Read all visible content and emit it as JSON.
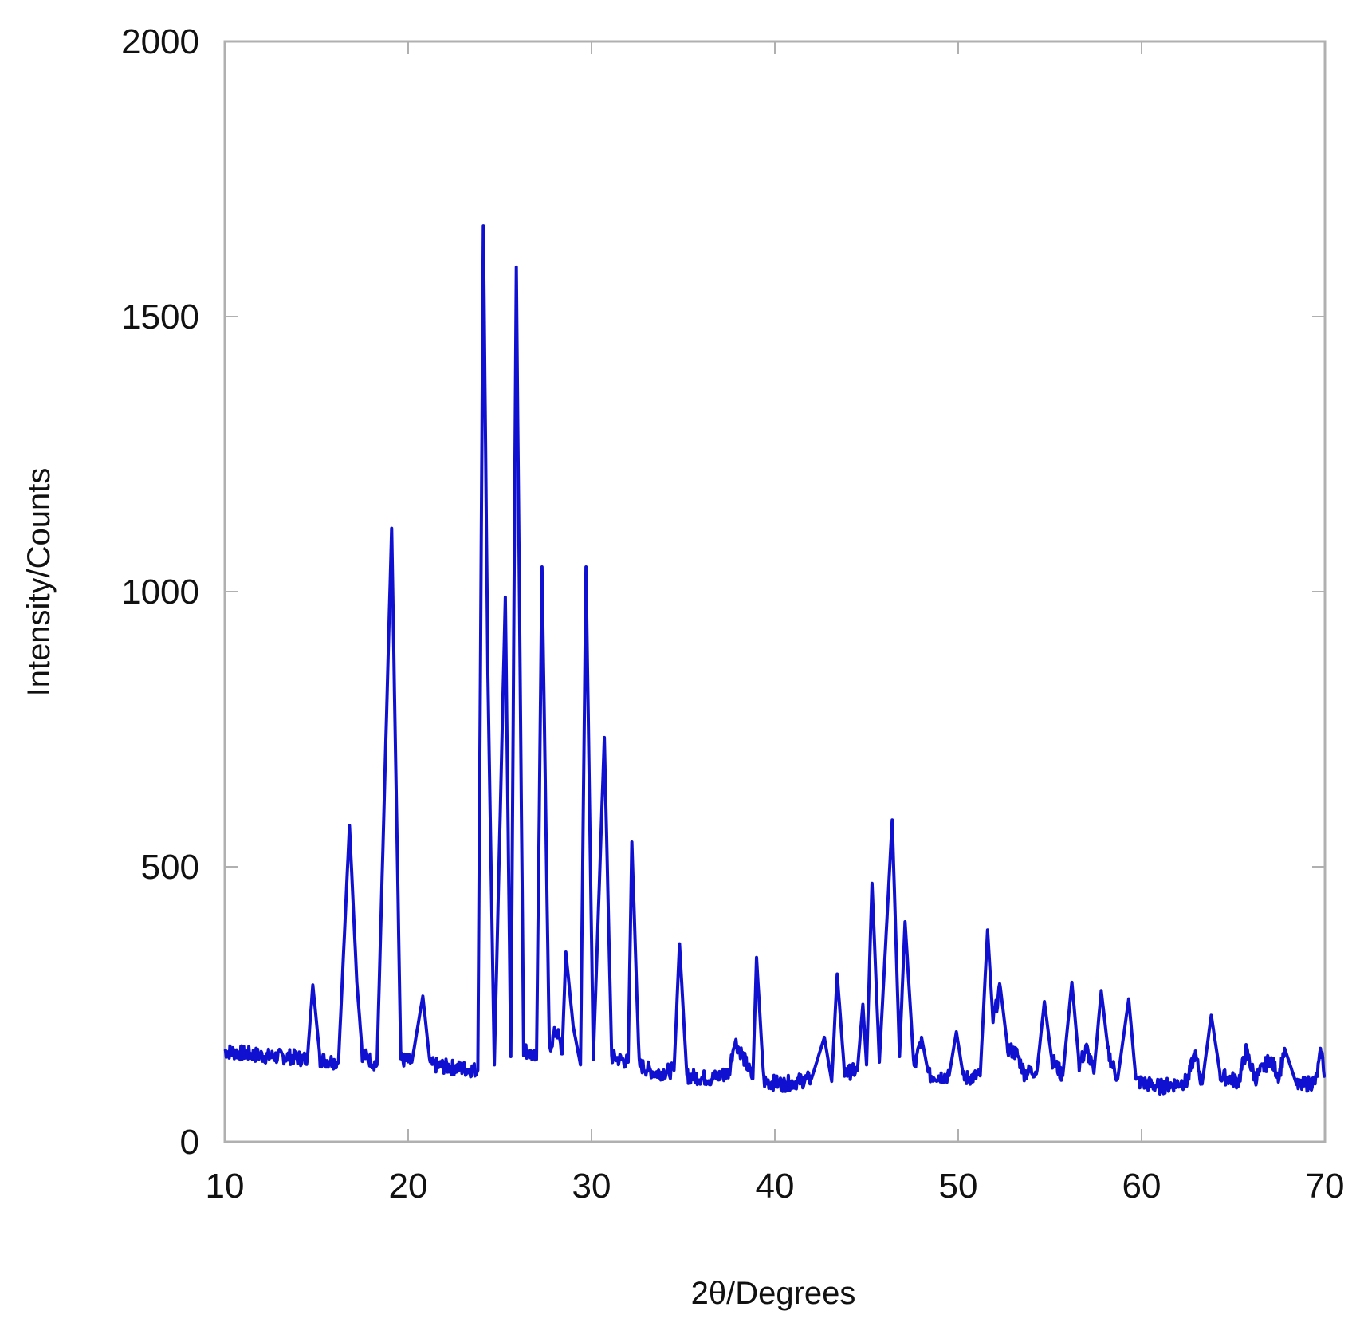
{
  "chart_data": {
    "type": "line",
    "title": "",
    "xlabel": "2θ/Degrees",
    "ylabel": "Intensity/Counts",
    "xlim": [
      10,
      70
    ],
    "ylim": [
      0,
      2000
    ],
    "x_ticks": [
      10,
      20,
      30,
      40,
      50,
      60,
      70
    ],
    "y_ticks": [
      0,
      500,
      1000,
      1500,
      2000
    ],
    "x_tick_labels": [
      "10",
      "20",
      "30",
      "40",
      "50",
      "60",
      "70"
    ],
    "y_tick_labels": [
      "0",
      "500",
      "1000",
      "1500",
      "2000"
    ],
    "grid": false,
    "legend": "none",
    "line_color": "#1010d0",
    "frame_color": "#b0b0b0",
    "series": [
      {
        "points": [
          [
            10.0,
            165
          ],
          [
            12.5,
            155
          ],
          [
            13.5,
            155
          ],
          [
            14.5,
            150
          ],
          [
            14.8,
            285
          ],
          [
            15.2,
            150
          ],
          [
            16.2,
            145
          ],
          [
            16.8,
            575
          ],
          [
            17.2,
            290
          ],
          [
            17.5,
            160
          ],
          [
            18.3,
            140
          ],
          [
            19.1,
            1115
          ],
          [
            19.6,
            150
          ],
          [
            20.2,
            145
          ],
          [
            20.8,
            265
          ],
          [
            21.2,
            140
          ],
          [
            22.5,
            135
          ],
          [
            23.8,
            130
          ],
          [
            24.1,
            1665
          ],
          [
            24.35,
            850
          ],
          [
            24.7,
            140
          ],
          [
            25.3,
            990
          ],
          [
            25.6,
            155
          ],
          [
            25.9,
            1590
          ],
          [
            26.3,
            170
          ],
          [
            27.0,
            150
          ],
          [
            27.3,
            1045
          ],
          [
            27.7,
            170
          ],
          [
            28.1,
            205
          ],
          [
            28.4,
            160
          ],
          [
            28.6,
            345
          ],
          [
            29.0,
            210
          ],
          [
            29.4,
            140
          ],
          [
            29.7,
            1045
          ],
          [
            30.1,
            150
          ],
          [
            30.7,
            735
          ],
          [
            31.1,
            155
          ],
          [
            32.0,
            145
          ],
          [
            32.2,
            545
          ],
          [
            32.6,
            140
          ],
          [
            33.5,
            125
          ],
          [
            34.5,
            130
          ],
          [
            34.8,
            360
          ],
          [
            35.2,
            120
          ],
          [
            36.5,
            115
          ],
          [
            37.5,
            125
          ],
          [
            37.8,
            185
          ],
          [
            38.2,
            160
          ],
          [
            38.8,
            115
          ],
          [
            39.0,
            335
          ],
          [
            39.4,
            110
          ],
          [
            40.5,
            105
          ],
          [
            42.0,
            115
          ],
          [
            42.7,
            190
          ],
          [
            43.1,
            110
          ],
          [
            43.4,
            305
          ],
          [
            43.8,
            125
          ],
          [
            44.5,
            130
          ],
          [
            44.8,
            250
          ],
          [
            45.0,
            140
          ],
          [
            45.3,
            470
          ],
          [
            45.7,
            145
          ],
          [
            46.4,
            585
          ],
          [
            46.8,
            155
          ],
          [
            47.1,
            400
          ],
          [
            47.6,
            130
          ],
          [
            48.0,
            190
          ],
          [
            48.4,
            120
          ],
          [
            49.5,
            120
          ],
          [
            49.9,
            200
          ],
          [
            50.3,
            115
          ],
          [
            51.2,
            120
          ],
          [
            51.6,
            385
          ],
          [
            51.9,
            220
          ],
          [
            52.3,
            280
          ],
          [
            52.7,
            170
          ],
          [
            53.2,
            160
          ],
          [
            53.6,
            125
          ],
          [
            54.3,
            130
          ],
          [
            54.7,
            255
          ],
          [
            55.1,
            150
          ],
          [
            55.7,
            120
          ],
          [
            56.2,
            290
          ],
          [
            56.6,
            140
          ],
          [
            57.0,
            170
          ],
          [
            57.4,
            125
          ],
          [
            57.8,
            275
          ],
          [
            58.2,
            160
          ],
          [
            58.7,
            115
          ],
          [
            59.3,
            260
          ],
          [
            59.7,
            110
          ],
          [
            61.0,
            100
          ],
          [
            62.5,
            110
          ],
          [
            62.9,
            160
          ],
          [
            63.3,
            105
          ],
          [
            63.8,
            230
          ],
          [
            64.3,
            120
          ],
          [
            65.3,
            110
          ],
          [
            65.7,
            165
          ],
          [
            66.2,
            115
          ],
          [
            67.0,
            150
          ],
          [
            67.5,
            120
          ],
          [
            67.8,
            170
          ],
          [
            68.5,
            100
          ],
          [
            69.5,
            110
          ],
          [
            69.8,
            165
          ],
          [
            70.0,
            120
          ]
        ]
      }
    ]
  }
}
